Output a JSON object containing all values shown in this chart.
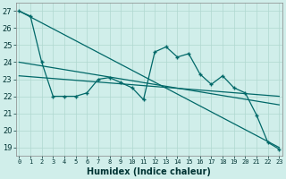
{
  "title": "",
  "xlabel": "Humidex (Indice chaleur)",
  "bg_color": "#d0eeea",
  "grid_color": "#b0d8d0",
  "line_color": "#006868",
  "x_data": [
    0,
    1,
    2,
    3,
    4,
    5,
    6,
    7,
    8,
    9,
    10,
    11,
    12,
    13,
    14,
    15,
    16,
    17,
    18,
    19,
    20,
    21,
    22,
    23
  ],
  "y_main": [
    27.0,
    26.7,
    24.0,
    22.0,
    22.0,
    22.0,
    22.2,
    23.0,
    23.1,
    22.8,
    22.5,
    21.8,
    24.6,
    24.9,
    24.3,
    24.5,
    23.3,
    22.7,
    23.2,
    22.5,
    22.2,
    20.9,
    19.3,
    18.9
  ],
  "y_line1_x": [
    0,
    23
  ],
  "y_line1_y": [
    27.0,
    19.0
  ],
  "y_line2_x": [
    0,
    23
  ],
  "y_line2_y": [
    24.0,
    21.5
  ],
  "y_line3_x": [
    0,
    23
  ],
  "y_line3_y": [
    23.2,
    22.0
  ],
  "ylim": [
    18.5,
    27.5
  ],
  "yticks": [
    19,
    20,
    21,
    22,
    23,
    24,
    25,
    26,
    27
  ],
  "xlim": [
    -0.3,
    23.3
  ]
}
